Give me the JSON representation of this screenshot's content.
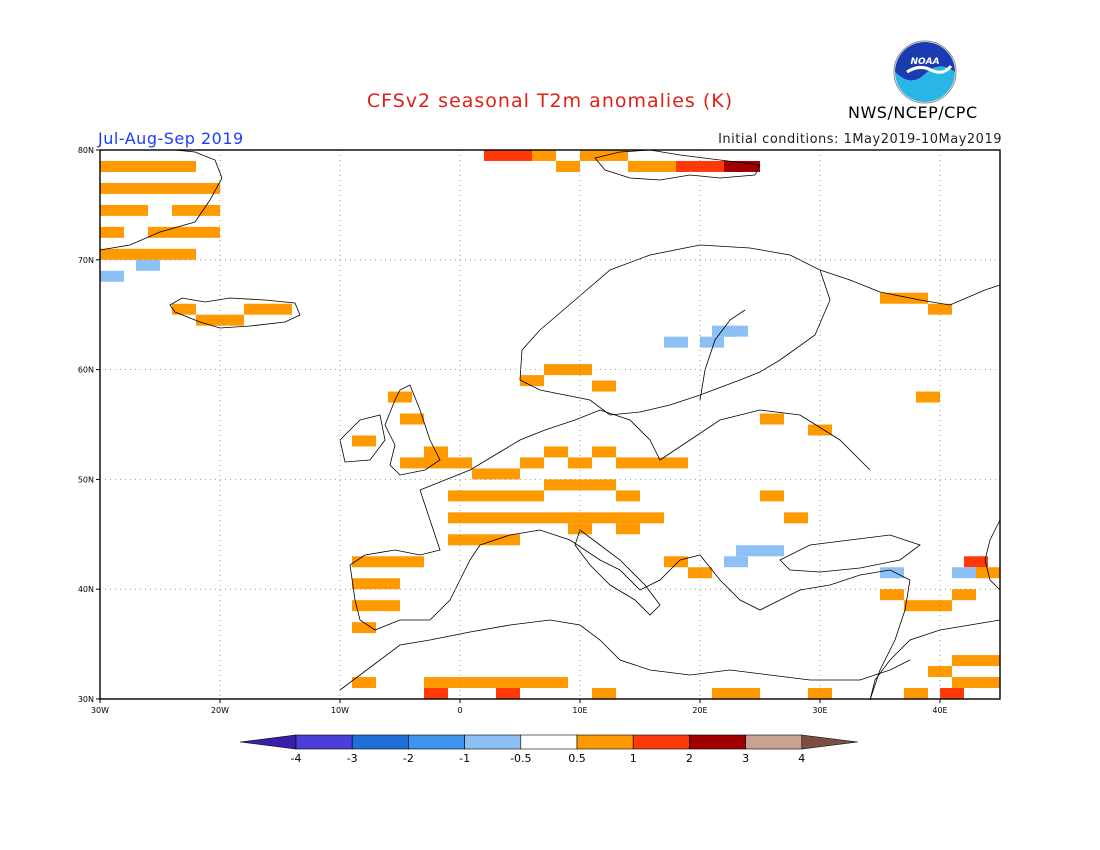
{
  "title": "CFSv2 seasonal T2m anomalies (K)",
  "period": "Jul-Aug-Sep 2019",
  "initial_conditions": "Initial conditions: 1May2019-10May2019",
  "agency": "NWS/NCEP/CPC",
  "logo": {
    "text": "NOAA",
    "colors": [
      "#1a3cb0",
      "#29b6e6"
    ]
  },
  "lat_labels": [
    "80N",
    "70N",
    "60N",
    "50N",
    "40N",
    "30N"
  ],
  "lon_labels": [
    "30W",
    "20W",
    "10W",
    "0",
    "10E",
    "20E",
    "30E",
    "40E"
  ],
  "colorbar": {
    "bins": [
      {
        "color": "#3a1ea8"
      },
      {
        "color": "#4a40d8"
      },
      {
        "color": "#1f6fd8"
      },
      {
        "color": "#3d94ee"
      },
      {
        "color": "#8dc0f5"
      },
      {
        "color": "#ffffff"
      },
      {
        "color": "#ff9900"
      },
      {
        "color": "#ff3a08"
      },
      {
        "color": "#a00000"
      },
      {
        "color": "#c8a394"
      },
      {
        "color": "#7a4e40"
      }
    ],
    "tick_labels": [
      "-4",
      "-3",
      "-2",
      "-1",
      "-0.5",
      "0.5",
      "1",
      "2",
      "3",
      "4"
    ]
  },
  "anomaly_cells": [
    {
      "lon": -29,
      "lat": 78.5,
      "c": 6
    },
    {
      "lon": -27,
      "lat": 78.5,
      "c": 6
    },
    {
      "lon": -25,
      "lat": 78.5,
      "c": 6
    },
    {
      "lon": -23,
      "lat": 78.5,
      "c": 6
    },
    {
      "lon": -29,
      "lat": 76.5,
      "c": 6
    },
    {
      "lon": -27,
      "lat": 76.5,
      "c": 6
    },
    {
      "lon": -25,
      "lat": 76.5,
      "c": 6
    },
    {
      "lon": -23,
      "lat": 76.5,
      "c": 6
    },
    {
      "lon": -21,
      "lat": 76.5,
      "c": 6
    },
    {
      "lon": -29,
      "lat": 74.5,
      "c": 6
    },
    {
      "lon": -27,
      "lat": 74.5,
      "c": 6
    },
    {
      "lon": -23,
      "lat": 74.5,
      "c": 6
    },
    {
      "lon": -21,
      "lat": 74.5,
      "c": 6
    },
    {
      "lon": -29,
      "lat": 72.5,
      "c": 6
    },
    {
      "lon": -25,
      "lat": 72.5,
      "c": 6
    },
    {
      "lon": -23,
      "lat": 72.5,
      "c": 6
    },
    {
      "lon": -21,
      "lat": 72.5,
      "c": 6
    },
    {
      "lon": -29,
      "lat": 70.5,
      "c": 6
    },
    {
      "lon": -27,
      "lat": 70.5,
      "c": 6
    },
    {
      "lon": -25,
      "lat": 70.5,
      "c": 6
    },
    {
      "lon": -23,
      "lat": 70.5,
      "c": 6
    },
    {
      "lon": -29,
      "lat": 68.5,
      "c": 4
    },
    {
      "lon": -26,
      "lat": 69.5,
      "c": 4
    },
    {
      "lon": -23,
      "lat": 65.5,
      "c": 6
    },
    {
      "lon": -21,
      "lat": 64.5,
      "c": 6
    },
    {
      "lon": -19,
      "lat": 64.5,
      "c": 6
    },
    {
      "lon": -17,
      "lat": 65.5,
      "c": 6
    },
    {
      "lon": -15,
      "lat": 65.5,
      "c": 6
    },
    {
      "lon": 3,
      "lat": 79.5,
      "c": 7
    },
    {
      "lon": 5,
      "lat": 79.5,
      "c": 7
    },
    {
      "lon": 7,
      "lat": 79.5,
      "c": 6
    },
    {
      "lon": 9,
      "lat": 78.5,
      "c": 6
    },
    {
      "lon": 11,
      "lat": 79.5,
      "c": 6
    },
    {
      "lon": 13,
      "lat": 79.5,
      "c": 6
    },
    {
      "lon": 15,
      "lat": 78.5,
      "c": 6
    },
    {
      "lon": 17,
      "lat": 78.5,
      "c": 6
    },
    {
      "lon": 19,
      "lat": 78.5,
      "c": 7
    },
    {
      "lon": 21,
      "lat": 78.5,
      "c": 7
    },
    {
      "lon": 23,
      "lat": 78.5,
      "c": 8
    },
    {
      "lon": 24,
      "lat": 78.5,
      "c": 8
    },
    {
      "lon": 18,
      "lat": 62.5,
      "c": 4
    },
    {
      "lon": 22,
      "lat": 63.5,
      "c": 4
    },
    {
      "lon": 21,
      "lat": 62.5,
      "c": 4
    },
    {
      "lon": 23,
      "lat": 63.5,
      "c": 4
    },
    {
      "lon": 8,
      "lat": 60,
      "c": 6
    },
    {
      "lon": 10,
      "lat": 60,
      "c": 6
    },
    {
      "lon": 12,
      "lat": 58.5,
      "c": 6
    },
    {
      "lon": 6,
      "lat": 59,
      "c": 6
    },
    {
      "lon": -5,
      "lat": 57.5,
      "c": 6
    },
    {
      "lon": -4,
      "lat": 55.5,
      "c": 6
    },
    {
      "lon": -8,
      "lat": 53.5,
      "c": 6
    },
    {
      "lon": -4,
      "lat": 51.5,
      "c": 6
    },
    {
      "lon": -2,
      "lat": 51.5,
      "c": 6
    },
    {
      "lon": 0,
      "lat": 51.5,
      "c": 6
    },
    {
      "lon": -2,
      "lat": 52.5,
      "c": 6
    },
    {
      "lon": 2,
      "lat": 50.5,
      "c": 6
    },
    {
      "lon": 4,
      "lat": 50.5,
      "c": 6
    },
    {
      "lon": 6,
      "lat": 51.5,
      "c": 6
    },
    {
      "lon": 8,
      "lat": 52.5,
      "c": 6
    },
    {
      "lon": 10,
      "lat": 51.5,
      "c": 6
    },
    {
      "lon": 12,
      "lat": 52.5,
      "c": 6
    },
    {
      "lon": 14,
      "lat": 51.5,
      "c": 6
    },
    {
      "lon": 16,
      "lat": 51.5,
      "c": 6
    },
    {
      "lon": 18,
      "lat": 51.5,
      "c": 6
    },
    {
      "lon": 0,
      "lat": 48.5,
      "c": 6
    },
    {
      "lon": 2,
      "lat": 48.5,
      "c": 6
    },
    {
      "lon": 4,
      "lat": 48.5,
      "c": 6
    },
    {
      "lon": 6,
      "lat": 48.5,
      "c": 6
    },
    {
      "lon": 8,
      "lat": 49.5,
      "c": 6
    },
    {
      "lon": 10,
      "lat": 49.5,
      "c": 6
    },
    {
      "lon": 12,
      "lat": 49.5,
      "c": 6
    },
    {
      "lon": 14,
      "lat": 48.5,
      "c": 6
    },
    {
      "lon": 0,
      "lat": 46.5,
      "c": 6
    },
    {
      "lon": 2,
      "lat": 46.5,
      "c": 6
    },
    {
      "lon": 4,
      "lat": 46.5,
      "c": 6
    },
    {
      "lon": 6,
      "lat": 46.5,
      "c": 6
    },
    {
      "lon": 8,
      "lat": 46.5,
      "c": 6
    },
    {
      "lon": 10,
      "lat": 46.5,
      "c": 6
    },
    {
      "lon": 12,
      "lat": 46.5,
      "c": 6
    },
    {
      "lon": 14,
      "lat": 46.5,
      "c": 6
    },
    {
      "lon": 16,
      "lat": 46.5,
      "c": 6
    },
    {
      "lon": 0,
      "lat": 44.5,
      "c": 6
    },
    {
      "lon": 2,
      "lat": 44.5,
      "c": 6
    },
    {
      "lon": 4,
      "lat": 44.5,
      "c": 6
    },
    {
      "lon": 10,
      "lat": 45.5,
      "c": 6
    },
    {
      "lon": 14,
      "lat": 45.5,
      "c": 6
    },
    {
      "lon": -8,
      "lat": 42.5,
      "c": 6
    },
    {
      "lon": -6,
      "lat": 42.5,
      "c": 6
    },
    {
      "lon": -4,
      "lat": 42.5,
      "c": 6
    },
    {
      "lon": -8,
      "lat": 40.5,
      "c": 6
    },
    {
      "lon": -6,
      "lat": 40.5,
      "c": 6
    },
    {
      "lon": -8,
      "lat": 38.5,
      "c": 6
    },
    {
      "lon": -6,
      "lat": 38.5,
      "c": 6
    },
    {
      "lon": -8,
      "lat": 36.5,
      "c": 6
    },
    {
      "lon": 18,
      "lat": 42.5,
      "c": 6
    },
    {
      "lon": 20,
      "lat": 41.5,
      "c": 6
    },
    {
      "lon": 24,
      "lat": 43.5,
      "c": 4
    },
    {
      "lon": 26,
      "lat": 43.5,
      "c": 4
    },
    {
      "lon": 23,
      "lat": 42.5,
      "c": 4
    },
    {
      "lon": 26,
      "lat": 48.5,
      "c": 6
    },
    {
      "lon": 28,
      "lat": 46.5,
      "c": 6
    },
    {
      "lon": 30,
      "lat": 54.5,
      "c": 6
    },
    {
      "lon": 26,
      "lat": 55.5,
      "c": 6
    },
    {
      "lon": 36,
      "lat": 66.5,
      "c": 6
    },
    {
      "lon": 38,
      "lat": 66.5,
      "c": 6
    },
    {
      "lon": 40,
      "lat": 65.5,
      "c": 6
    },
    {
      "lon": 39,
      "lat": 57.5,
      "c": 6
    },
    {
      "lon": 36,
      "lat": 39.5,
      "c": 6
    },
    {
      "lon": 38,
      "lat": 38.5,
      "c": 6
    },
    {
      "lon": 40,
      "lat": 38.5,
      "c": 6
    },
    {
      "lon": 42,
      "lat": 39.5,
      "c": 6
    },
    {
      "lon": 44,
      "lat": 41.5,
      "c": 6
    },
    {
      "lon": 42,
      "lat": 33.5,
      "c": 6
    },
    {
      "lon": 44,
      "lat": 33.5,
      "c": 6
    },
    {
      "lon": 40,
      "lat": 32.5,
      "c": 6
    },
    {
      "lon": 42,
      "lat": 31.5,
      "c": 6
    },
    {
      "lon": 44,
      "lat": 31.5,
      "c": 6
    },
    {
      "lon": 41,
      "lat": 30.5,
      "c": 7
    },
    {
      "lon": 43,
      "lat": 42.5,
      "c": 7
    },
    {
      "lon": 36,
      "lat": 41.5,
      "c": 4
    },
    {
      "lon": 42,
      "lat": 41.5,
      "c": 4
    },
    {
      "lon": -8,
      "lat": 31.5,
      "c": 6
    },
    {
      "lon": -2,
      "lat": 31.5,
      "c": 6
    },
    {
      "lon": 0,
      "lat": 31.5,
      "c": 6
    },
    {
      "lon": 2,
      "lat": 31.5,
      "c": 6
    },
    {
      "lon": 4,
      "lat": 31.5,
      "c": 6
    },
    {
      "lon": 6,
      "lat": 31.5,
      "c": 6
    },
    {
      "lon": 8,
      "lat": 31.5,
      "c": 6
    },
    {
      "lon": -2,
      "lat": 30.5,
      "c": 7
    },
    {
      "lon": 4,
      "lat": 30.5,
      "c": 7
    },
    {
      "lon": 12,
      "lat": 30.5,
      "c": 6
    },
    {
      "lon": 22,
      "lat": 30.5,
      "c": 6
    },
    {
      "lon": 24,
      "lat": 30.5,
      "c": 6
    },
    {
      "lon": 30,
      "lat": 30.5,
      "c": 6
    },
    {
      "lon": 38,
      "lat": 30.5,
      "c": 6
    }
  ]
}
